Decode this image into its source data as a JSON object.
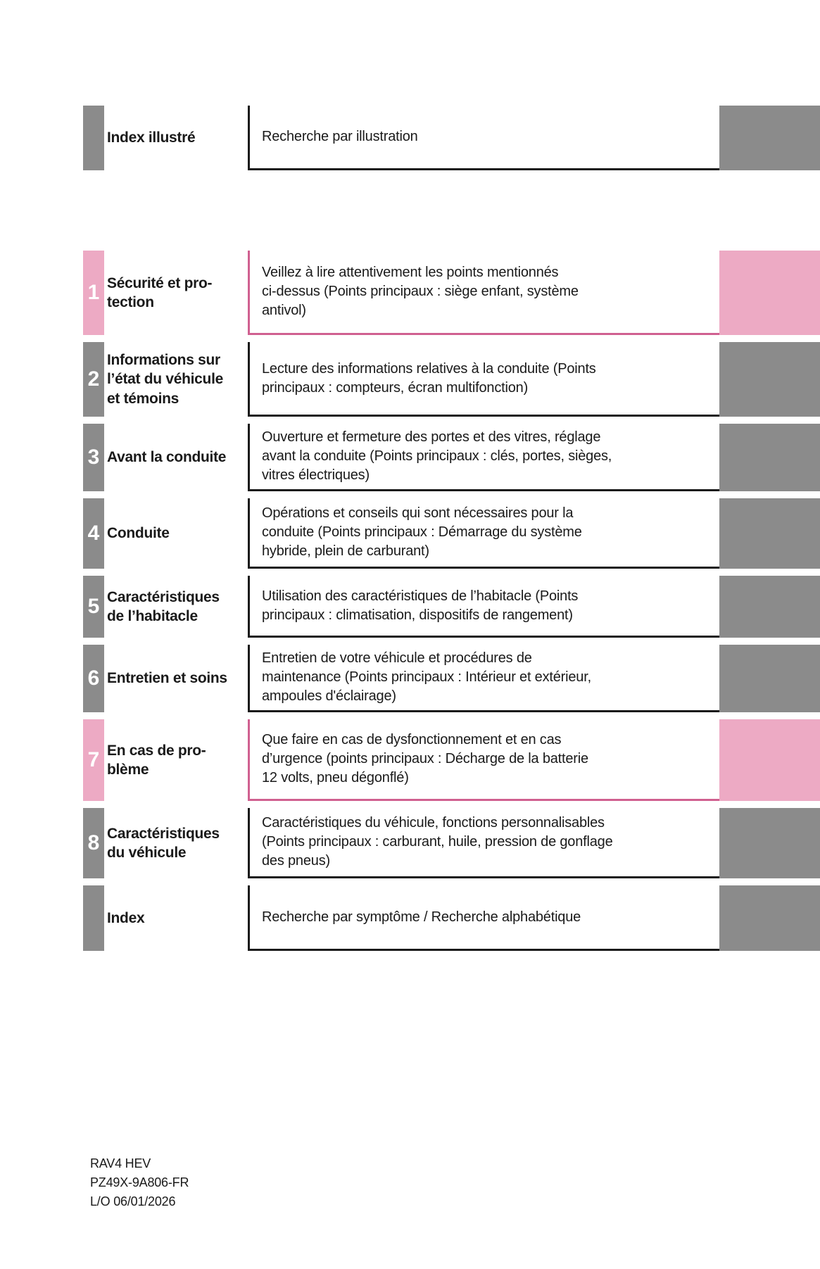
{
  "colors": {
    "gray": "#8b8b8b",
    "pink": "#edaac4",
    "pink_border": "#d06090",
    "dark_border": "#1a1a1a",
    "text": "#1a1a1a"
  },
  "header": {
    "title": "Index illustré",
    "description": "Recherche par illustration"
  },
  "sections": [
    {
      "number": "1",
      "accent": "pink",
      "title": "Sécurité et pro-\ntection",
      "description": "Veillez à lire attentivement les points mentionnés\nci-dessus (Points principaux : siège enfant, système\nantivol)"
    },
    {
      "number": "2",
      "accent": "gray",
      "title": "Informations sur\nl’état du véhicule\net témoins",
      "description": "Lecture des informations relatives à la conduite (Points\nprincipaux : compteurs, écran multifonction)"
    },
    {
      "number": "3",
      "accent": "gray",
      "title": "Avant la conduite",
      "description": "Ouverture et fermeture des portes et des vitres, réglage\navant la conduite (Points principaux : clés, portes, sièges,\nvitres électriques)"
    },
    {
      "number": "4",
      "accent": "gray",
      "title": "Conduite",
      "description": "Opérations et conseils qui sont nécessaires pour la\nconduite (Points principaux : Démarrage du système\nhybride, plein de carburant)"
    },
    {
      "number": "5",
      "accent": "gray",
      "title": "Caractéristiques\nde l’habitacle",
      "description": "Utilisation des caractéristiques de l’habitacle (Points\nprincipaux : climatisation, dispositifs de rangement)"
    },
    {
      "number": "6",
      "accent": "gray",
      "title": "Entretien et soins",
      "description": "Entretien de votre véhicule et procédures de\nmaintenance (Points principaux : Intérieur et extérieur,\nampoules d'éclairage)"
    },
    {
      "number": "7",
      "accent": "pink",
      "title": "En cas de pro-\nblème",
      "description": "Que faire en cas de dysfonctionnement et en cas\nd’urgence (points principaux : Décharge de la batterie\n12 volts, pneu dégonflé)"
    },
    {
      "number": "8",
      "accent": "gray",
      "title": "Caractéristiques\ndu véhicule",
      "description": "Caractéristiques du véhicule, fonctions personnalisables\n(Points principaux : carburant, huile, pression de gonflage\ndes pneus)"
    },
    {
      "number": "",
      "accent": "gray",
      "title": "Index",
      "description": "Recherche par symptôme / Recherche alphabétique"
    }
  ],
  "footer": {
    "lines": [
      "RAV4 HEV",
      "PZ49X-9A806-FR",
      "L/O 06/01/2026"
    ]
  }
}
